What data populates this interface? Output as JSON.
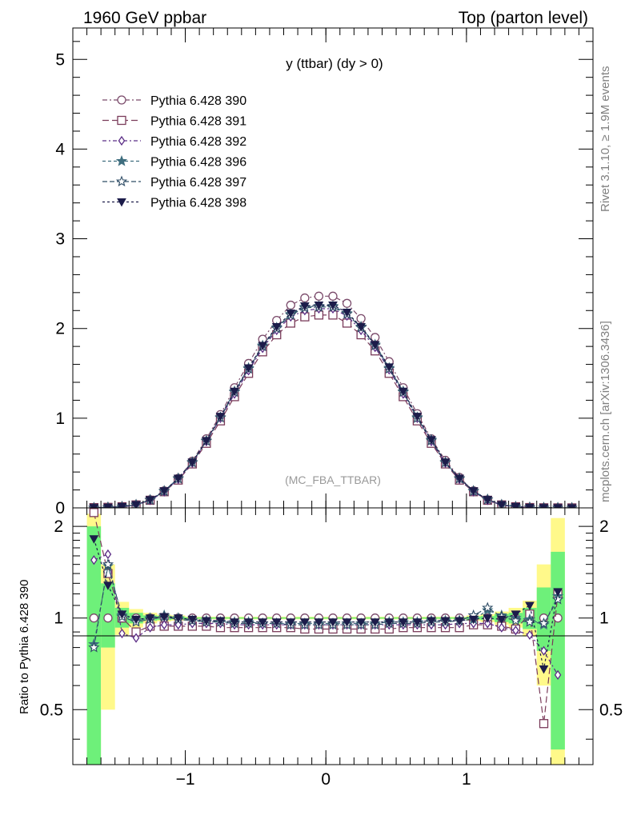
{
  "header": {
    "left_title": "1960 GeV ppbar",
    "right_title": "Top (parton level)"
  },
  "side_labels": {
    "rivet": "Rivet 3.1.10, ≥ 1.9M events",
    "mcplots": "mcplots.cern.ch [arXiv:1306.3436]"
  },
  "plot_title": "y (ttbar) (dy > 0)",
  "analysis_tag": "(MC_FBA_TTBAR)",
  "colors": {
    "390": "#7b4b6b",
    "391": "#7a3b5a",
    "392": "#5b2d86",
    "396": "#3f6e7f",
    "397": "#2f4d66",
    "398": "#1c1c4a",
    "band_inner": "#6ef07a",
    "band_outer": "#fff98a"
  },
  "chart_data": [
    {
      "type": "line",
      "panel": "main",
      "title": "y (ttbar) (dy > 0)",
      "xlim": [
        -1.8,
        1.9
      ],
      "ylim": [
        0,
        5.35
      ],
      "yticks": [
        0,
        1,
        2,
        3,
        4,
        5
      ],
      "legend_placement": "top-left",
      "x": [
        -1.65,
        -1.55,
        -1.45,
        -1.35,
        -1.25,
        -1.15,
        -1.05,
        -0.95,
        -0.85,
        -0.75,
        -0.65,
        -0.55,
        -0.45,
        -0.35,
        -0.25,
        -0.15,
        -0.05,
        0.05,
        0.15,
        0.25,
        0.35,
        0.45,
        0.55,
        0.65,
        0.75,
        0.85,
        0.95,
        1.05,
        1.15,
        1.25,
        1.35,
        1.45,
        1.55,
        1.65,
        1.75
      ],
      "series": [
        {
          "name": "Pythia 6.428 390",
          "marker": "circle-open",
          "values": [
            0.002,
            0.005,
            0.013,
            0.035,
            0.09,
            0.19,
            0.33,
            0.52,
            0.77,
            1.04,
            1.34,
            1.61,
            1.88,
            2.09,
            2.26,
            2.34,
            2.36,
            2.36,
            2.28,
            2.11,
            1.9,
            1.63,
            1.34,
            1.05,
            0.77,
            0.53,
            0.34,
            0.19,
            0.09,
            0.035,
            0.013,
            0.005,
            0.002,
            0.001,
            0.0
          ]
        },
        {
          "name": "Pythia 6.428 391",
          "marker": "square-open",
          "values": [
            0.003,
            0.006,
            0.013,
            0.033,
            0.085,
            0.18,
            0.31,
            0.49,
            0.72,
            0.97,
            1.24,
            1.5,
            1.74,
            1.93,
            2.06,
            2.13,
            2.15,
            2.15,
            2.06,
            1.93,
            1.75,
            1.5,
            1.24,
            0.97,
            0.72,
            0.49,
            0.31,
            0.18,
            0.085,
            0.033,
            0.013,
            0.004,
            0.001,
            0.0,
            0.0
          ]
        },
        {
          "name": "Pythia 6.428 392",
          "marker": "diamond-open",
          "values": [
            0.003,
            0.008,
            0.012,
            0.03,
            0.085,
            0.18,
            0.32,
            0.5,
            0.74,
            1.0,
            1.27,
            1.53,
            1.78,
            1.98,
            2.13,
            2.2,
            2.22,
            2.22,
            2.14,
            1.98,
            1.79,
            1.54,
            1.27,
            1.0,
            0.74,
            0.5,
            0.32,
            0.18,
            0.085,
            0.031,
            0.012,
            0.005,
            0.002,
            0.0,
            0.0
          ]
        },
        {
          "name": "Pythia 6.428 396",
          "marker": "star-filled",
          "values": [
            0.002,
            0.006,
            0.013,
            0.035,
            0.09,
            0.19,
            0.33,
            0.51,
            0.75,
            1.01,
            1.3,
            1.56,
            1.81,
            2.01,
            2.16,
            2.24,
            2.25,
            2.25,
            2.17,
            2.02,
            1.82,
            1.56,
            1.3,
            1.01,
            0.76,
            0.51,
            0.33,
            0.19,
            0.095,
            0.036,
            0.013,
            0.005,
            0.002,
            0.001,
            0.0
          ]
        },
        {
          "name": "Pythia 6.428 397",
          "marker": "star-open",
          "values": [
            0.001,
            0.006,
            0.013,
            0.034,
            0.088,
            0.185,
            0.325,
            0.505,
            0.745,
            1.005,
            1.29,
            1.55,
            1.8,
            2.0,
            2.15,
            2.23,
            2.24,
            2.24,
            2.16,
            2.01,
            1.81,
            1.55,
            1.29,
            1.0,
            0.75,
            0.505,
            0.325,
            0.185,
            0.092,
            0.035,
            0.013,
            0.005,
            0.002,
            0.001,
            0.0
          ]
        },
        {
          "name": "Pythia 6.428 398",
          "marker": "triangle-down-filled",
          "values": [
            0.003,
            0.006,
            0.013,
            0.035,
            0.09,
            0.19,
            0.33,
            0.51,
            0.75,
            1.02,
            1.3,
            1.56,
            1.81,
            2.02,
            2.17,
            2.25,
            2.26,
            2.26,
            2.18,
            2.02,
            1.82,
            1.57,
            1.3,
            1.02,
            0.76,
            0.51,
            0.33,
            0.19,
            0.092,
            0.035,
            0.013,
            0.005,
            0.002,
            0.001,
            0.0
          ]
        }
      ]
    },
    {
      "type": "line",
      "panel": "ratio",
      "ylabel": "Ratio to Pythia 6.428 390",
      "xlim": [
        -1.8,
        1.9
      ],
      "ylim": [
        0.33,
        2.3
      ],
      "yticks": [
        0.5,
        1,
        2
      ],
      "ytick_labels": [
        "0.5",
        "1",
        "2"
      ],
      "xticks": [
        -1,
        0,
        1
      ],
      "xtick_labels": [
        "−1",
        "0",
        "1"
      ],
      "reference_line": 1,
      "x": [
        -1.65,
        -1.55,
        -1.45,
        -1.35,
        -1.25,
        -1.15,
        -1.05,
        -0.95,
        -0.85,
        -0.75,
        -0.65,
        -0.55,
        -0.45,
        -0.35,
        -0.25,
        -0.15,
        -0.05,
        0.05,
        0.15,
        0.25,
        0.35,
        0.45,
        0.55,
        0.65,
        0.75,
        0.85,
        0.95,
        1.05,
        1.15,
        1.25,
        1.35,
        1.45,
        1.55,
        1.65
      ],
      "bands": {
        "edges": [
          -1.7,
          -1.6,
          -1.5,
          -1.4,
          -1.3,
          -1.2,
          -1.1,
          -1.0,
          1.0,
          1.1,
          1.2,
          1.3,
          1.4,
          1.5,
          1.6,
          1.7
        ],
        "inner": [
          [
            0.33,
            2.0
          ],
          [
            0.8,
            1.3
          ],
          [
            0.93,
            1.08
          ],
          [
            0.96,
            1.04
          ],
          [
            0.98,
            1.02
          ],
          [
            0.985,
            1.015
          ],
          [
            0.99,
            1.01
          ],
          [
            0.995,
            1.005
          ],
          [
            0.99,
            1.01
          ],
          [
            0.985,
            1.015
          ],
          [
            0.97,
            1.03
          ],
          [
            0.96,
            1.04
          ],
          [
            0.92,
            1.08
          ],
          [
            0.78,
            1.26
          ],
          [
            0.37,
            1.65
          ]
        ],
        "outer": [
          [
            0.33,
            2.2
          ],
          [
            0.5,
            1.5
          ],
          [
            0.88,
            1.13
          ],
          [
            0.93,
            1.07
          ],
          [
            0.96,
            1.04
          ],
          [
            0.975,
            1.025
          ],
          [
            0.98,
            1.02
          ],
          [
            0.99,
            1.01
          ],
          [
            0.98,
            1.02
          ],
          [
            0.97,
            1.03
          ],
          [
            0.95,
            1.05
          ],
          [
            0.93,
            1.08
          ],
          [
            0.87,
            1.14
          ],
          [
            0.6,
            1.5
          ],
          [
            0.33,
            2.13
          ]
        ]
      },
      "series": [
        {
          "name": "Pythia 6.428 391",
          "values": [
            2.22,
            1.4,
            1.0,
            0.9,
            0.94,
            0.94,
            0.94,
            0.94,
            0.94,
            0.93,
            0.93,
            0.93,
            0.93,
            0.93,
            0.93,
            0.92,
            0.92,
            0.92,
            0.92,
            0.92,
            0.92,
            0.92,
            0.93,
            0.93,
            0.93,
            0.93,
            0.93,
            0.95,
            0.95,
            0.94,
            0.92,
            1.03,
            0.45,
            1.2
          ]
        },
        {
          "name": "Pythia 6.428 392",
          "values": [
            1.55,
            1.62,
            0.89,
            0.86,
            0.93,
            0.95,
            0.95,
            0.96,
            0.96,
            0.96,
            0.95,
            0.95,
            0.95,
            0.95,
            0.95,
            0.95,
            0.95,
            0.95,
            0.95,
            0.95,
            0.95,
            0.95,
            0.95,
            0.95,
            0.95,
            0.95,
            0.96,
            0.96,
            0.96,
            0.93,
            0.91,
            0.88,
            0.78,
            0.65
          ]
        },
        {
          "name": "Pythia 6.428 396",
          "values": [
            0.82,
            1.48,
            1.02,
            0.98,
            1.0,
            1.02,
            1.0,
            0.98,
            0.98,
            0.97,
            0.97,
            0.97,
            0.96,
            0.96,
            0.96,
            0.96,
            0.96,
            0.96,
            0.96,
            0.96,
            0.96,
            0.97,
            0.97,
            0.97,
            0.98,
            0.98,
            0.98,
            0.99,
            1.06,
            1.02,
            1.0,
            0.99,
            0.95,
            1.18
          ]
        },
        {
          "name": "Pythia 6.428 397",
          "values": [
            0.8,
            1.5,
            1.01,
            0.97,
            0.99,
            1.01,
            0.99,
            0.98,
            0.97,
            0.97,
            0.96,
            0.96,
            0.96,
            0.96,
            0.95,
            0.95,
            0.95,
            0.95,
            0.95,
            0.95,
            0.95,
            0.96,
            0.96,
            0.96,
            0.97,
            0.97,
            0.98,
            1.02,
            1.08,
            1.01,
            0.98,
            0.97,
            0.96,
            1.15
          ]
        },
        {
          "name": "Pythia 6.428 398",
          "values": [
            1.82,
            1.28,
            1.03,
            0.99,
            1.0,
            1.01,
            1.0,
            0.99,
            0.98,
            0.98,
            0.97,
            0.97,
            0.97,
            0.97,
            0.97,
            0.97,
            0.97,
            0.97,
            0.97,
            0.97,
            0.97,
            0.97,
            0.97,
            0.97,
            0.98,
            0.98,
            0.98,
            0.99,
            1.0,
            0.99,
            1.03,
            1.1,
            0.68,
            1.22
          ]
        }
      ]
    }
  ]
}
